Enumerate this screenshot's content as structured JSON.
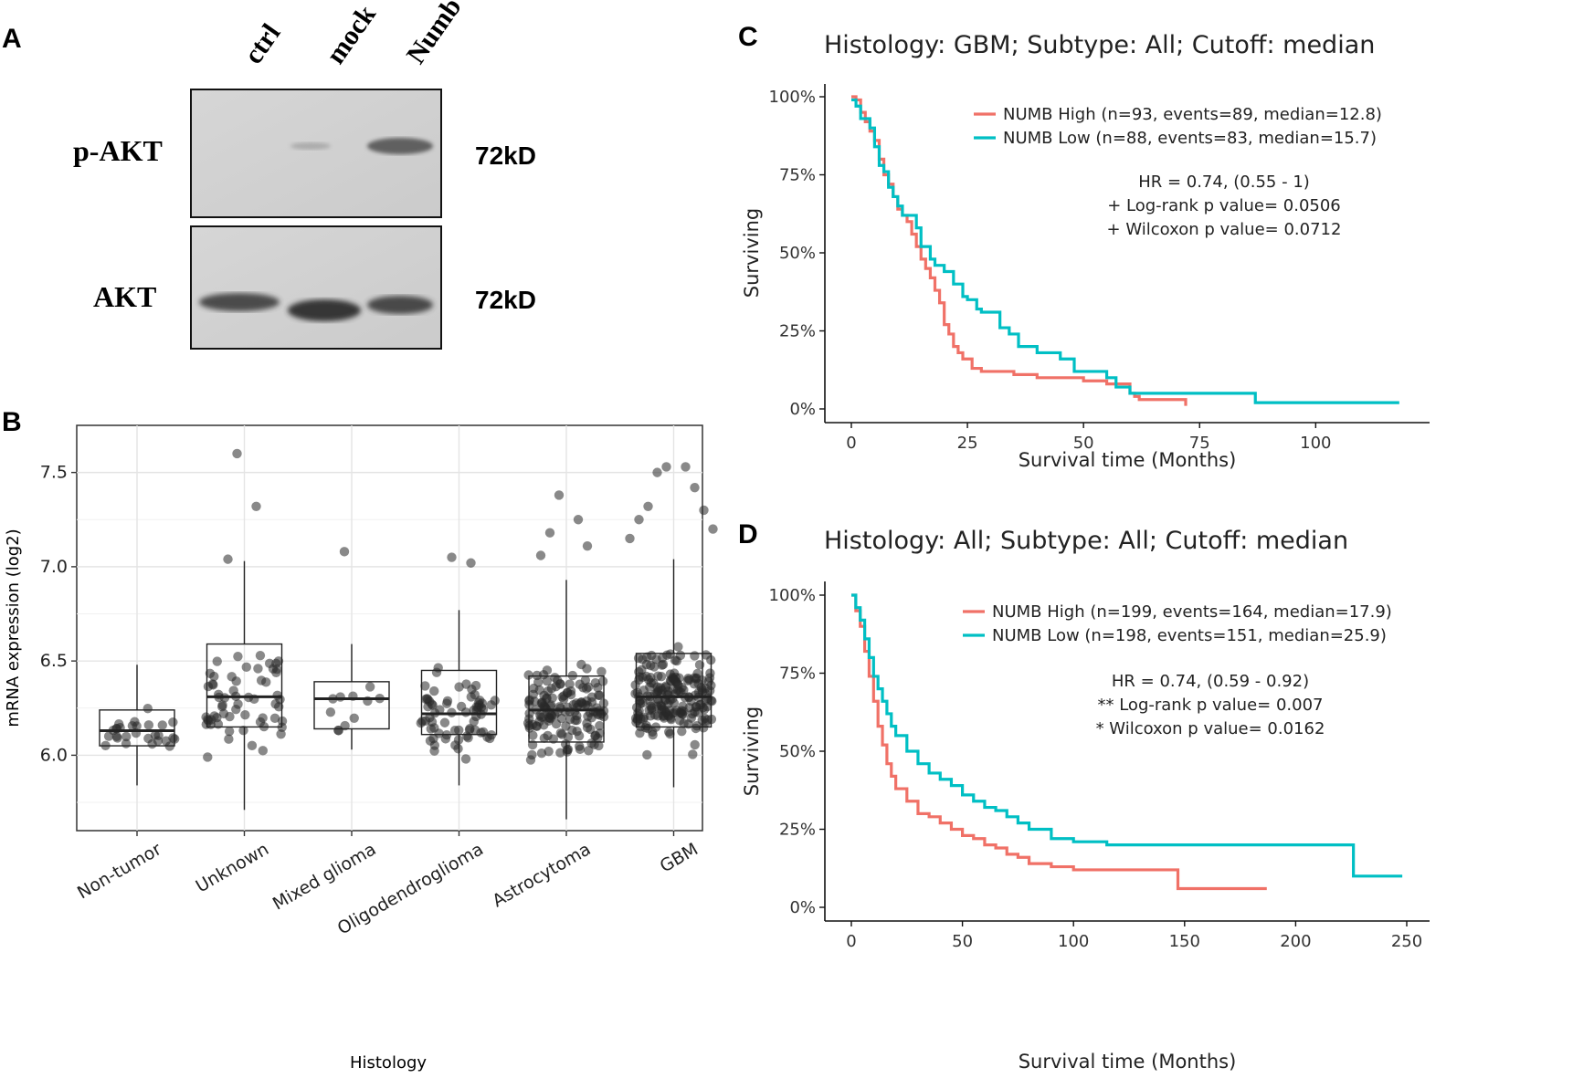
{
  "panels": {
    "A": {
      "label": "A",
      "lanes": [
        "ctrl",
        "mock",
        "Numb"
      ],
      "blots": [
        {
          "band": "p-AKT",
          "size": "72kD"
        },
        {
          "band": "AKT",
          "size": "72kD"
        }
      ]
    },
    "B": {
      "label": "B"
    },
    "C": {
      "label": "C"
    },
    "D": {
      "label": "D"
    }
  },
  "chart_data": [
    {
      "type": "box",
      "panel": "B",
      "xlabel": "Histology",
      "ylabel": "mRNA expression (log2)",
      "ylim": [
        5.6,
        7.75
      ],
      "yticks": [
        6.0,
        6.5,
        7.0,
        7.5
      ],
      "categories": [
        "Non-tumor",
        "Unknown",
        "Mixed glioma",
        "Oligodendroglioma",
        "Astrocytoma",
        "GBM"
      ],
      "boxes": [
        {
          "q1": 6.05,
          "median": 6.13,
          "q3": 6.24,
          "whisker_low": 5.84,
          "whisker_high": 6.48,
          "n_points": 28
        },
        {
          "q1": 6.15,
          "median": 6.31,
          "q3": 6.59,
          "whisker_low": 5.71,
          "whisker_high": 7.03,
          "n_points": 60
        },
        {
          "q1": 6.14,
          "median": 6.3,
          "q3": 6.39,
          "whisker_low": 6.03,
          "whisker_high": 6.59,
          "n_points": 11
        },
        {
          "q1": 6.11,
          "median": 6.22,
          "q3": 6.45,
          "whisker_low": 5.84,
          "whisker_high": 6.77,
          "n_points": 70
        },
        {
          "q1": 6.07,
          "median": 6.24,
          "q3": 6.42,
          "whisker_low": 5.66,
          "whisker_high": 6.93,
          "n_points": 150
        },
        {
          "q1": 6.15,
          "median": 6.31,
          "q3": 6.54,
          "whisker_low": 5.83,
          "whisker_high": 7.04,
          "n_points": 200
        }
      ],
      "outliers": [
        {
          "category": "Unknown",
          "values": [
            7.6,
            7.32,
            7.04
          ]
        },
        {
          "category": "Mixed glioma",
          "values": [
            7.08
          ]
        },
        {
          "category": "Oligodendroglioma",
          "values": [
            7.05,
            7.02
          ]
        },
        {
          "category": "Astrocytoma",
          "values": [
            7.38,
            7.25,
            7.18,
            7.11,
            7.06
          ]
        },
        {
          "category": "GBM",
          "values": [
            7.53,
            7.53,
            7.5,
            7.42,
            7.32,
            7.3,
            7.25,
            7.2,
            7.15
          ]
        }
      ]
    },
    {
      "type": "line",
      "panel": "C",
      "title": "Histology: GBM; Subtype: All; Cutoff: median",
      "xlabel": "Survival time (Months)",
      "ylabel": "Surviving",
      "xlim": [
        0,
        120
      ],
      "ylim": [
        0,
        1
      ],
      "xticks": [
        0,
        25,
        50,
        75,
        100
      ],
      "yticks": [
        "0%",
        "25%",
        "50%",
        "75%",
        "100%"
      ],
      "series": [
        {
          "name": "NUMB High (n=93, events=89, median=12.8)",
          "color": "#f07167",
          "x": [
            0,
            1,
            2,
            3,
            4,
            5,
            6,
            7,
            8,
            9,
            10,
            11,
            12,
            13,
            14,
            15,
            16,
            17,
            18,
            19,
            20,
            21,
            22,
            23,
            24,
            26,
            28,
            30,
            35,
            40,
            45,
            50,
            55,
            60,
            61,
            62,
            65,
            70,
            72
          ],
          "y": [
            1.0,
            0.99,
            0.95,
            0.92,
            0.89,
            0.86,
            0.8,
            0.75,
            0.72,
            0.68,
            0.64,
            0.62,
            0.6,
            0.56,
            0.52,
            0.48,
            0.45,
            0.42,
            0.38,
            0.34,
            0.27,
            0.24,
            0.2,
            0.18,
            0.16,
            0.13,
            0.12,
            0.12,
            0.11,
            0.1,
            0.1,
            0.09,
            0.08,
            0.05,
            0.04,
            0.03,
            0.03,
            0.03,
            0.01
          ]
        },
        {
          "name": "NUMB Low (n=88, events=83, median=15.7)",
          "color": "#00bfc4",
          "x": [
            0,
            1,
            2,
            4,
            5,
            6,
            7,
            8,
            9,
            10,
            11,
            12,
            14,
            15,
            17,
            18,
            20,
            22,
            24,
            25,
            27,
            28,
            30,
            32,
            34,
            36,
            40,
            45,
            48,
            50,
            55,
            57,
            60,
            64,
            70,
            80,
            87,
            100,
            110,
            118
          ],
          "y": [
            0.99,
            0.97,
            0.93,
            0.9,
            0.84,
            0.78,
            0.76,
            0.71,
            0.68,
            0.65,
            0.62,
            0.62,
            0.58,
            0.52,
            0.48,
            0.46,
            0.44,
            0.4,
            0.36,
            0.35,
            0.32,
            0.31,
            0.31,
            0.26,
            0.24,
            0.2,
            0.18,
            0.16,
            0.12,
            0.12,
            0.1,
            0.07,
            0.05,
            0.05,
            0.05,
            0.05,
            0.02,
            0.02,
            0.02,
            0.02
          ]
        }
      ],
      "annotations": [
        "HR = 0.74, (0.55 - 1)",
        "+ Log-rank p value= 0.0506",
        "+ Wilcoxon p value= 0.0712"
      ]
    },
    {
      "type": "line",
      "panel": "D",
      "title": "Histology: All; Subtype: All; Cutoff: median",
      "xlabel": "Survival time (Months)",
      "ylabel": "Surviving",
      "xlim": [
        0,
        250
      ],
      "ylim": [
        0,
        1
      ],
      "xticks": [
        0,
        50,
        100,
        150,
        200,
        250
      ],
      "yticks": [
        "0%",
        "25%",
        "50%",
        "75%",
        "100%"
      ],
      "series": [
        {
          "name": "NUMB High (n=199, events=164, median=17.9)",
          "color": "#f07167",
          "x": [
            0,
            2,
            4,
            6,
            8,
            10,
            12,
            14,
            16,
            18,
            20,
            25,
            30,
            35,
            40,
            45,
            50,
            55,
            60,
            65,
            70,
            75,
            80,
            90,
            100,
            120,
            140,
            147,
            160,
            187
          ],
          "y": [
            1.0,
            0.95,
            0.9,
            0.82,
            0.74,
            0.66,
            0.58,
            0.52,
            0.46,
            0.42,
            0.38,
            0.34,
            0.3,
            0.29,
            0.27,
            0.25,
            0.23,
            0.22,
            0.2,
            0.19,
            0.17,
            0.16,
            0.14,
            0.13,
            0.12,
            0.12,
            0.12,
            0.06,
            0.06,
            0.06
          ]
        },
        {
          "name": "NUMB Low (n=198, events=151, median=25.9)",
          "color": "#00bfc4",
          "x": [
            0,
            2,
            4,
            6,
            8,
            10,
            12,
            14,
            16,
            18,
            20,
            25,
            30,
            35,
            40,
            45,
            50,
            55,
            60,
            65,
            70,
            75,
            80,
            90,
            100,
            115,
            150,
            200,
            225,
            226,
            248
          ],
          "y": [
            1.0,
            0.96,
            0.92,
            0.86,
            0.8,
            0.74,
            0.7,
            0.66,
            0.62,
            0.58,
            0.55,
            0.5,
            0.46,
            0.43,
            0.41,
            0.39,
            0.36,
            0.34,
            0.32,
            0.31,
            0.29,
            0.27,
            0.25,
            0.22,
            0.21,
            0.2,
            0.2,
            0.2,
            0.2,
            0.1,
            0.1
          ]
        }
      ],
      "annotations": [
        "HR = 0.74, (0.59 - 0.92)",
        "** Log-rank p value= 0.007",
        "* Wilcoxon p value= 0.0162"
      ]
    }
  ]
}
